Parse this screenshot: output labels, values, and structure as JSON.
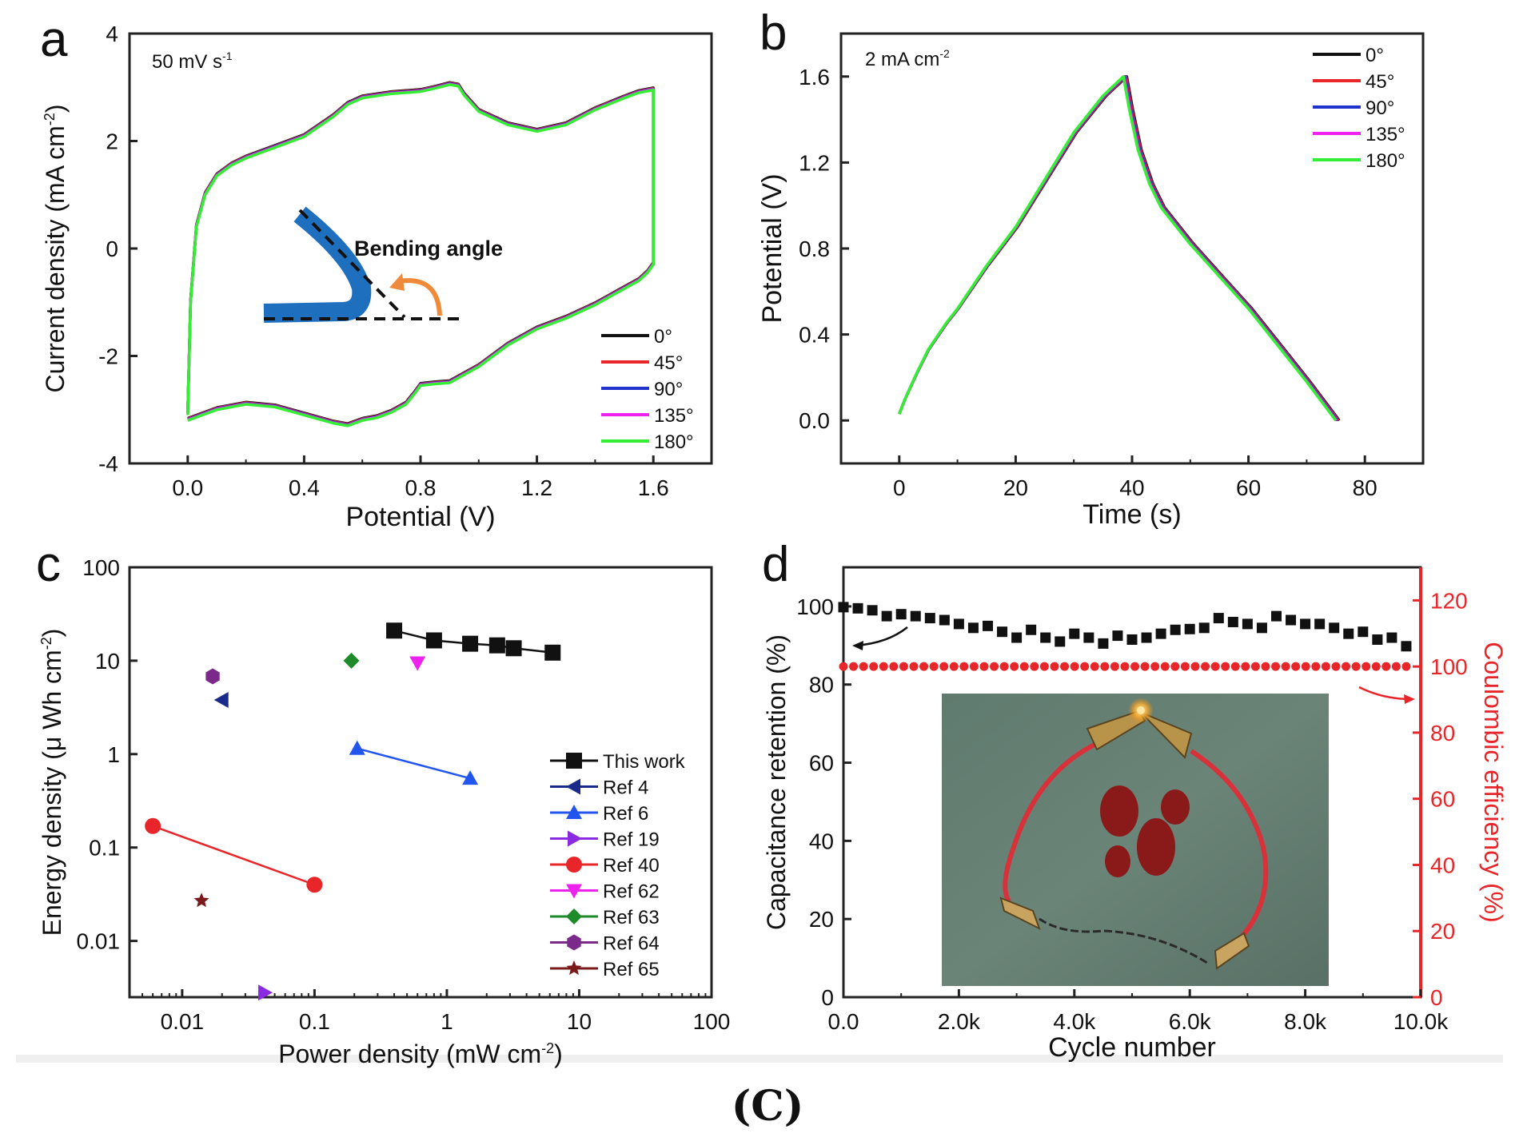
{
  "figure": {
    "caption": "(C)",
    "panel_labels": [
      "a",
      "b",
      "c",
      "d"
    ]
  },
  "chart_data": [
    {
      "id": "a",
      "type": "line",
      "annotation": "50 mV s",
      "annotation_sup": "-1",
      "xlabel": "Potential (V)",
      "ylabel": "Current density (mA cm",
      "ylabel_sup": "-2",
      "ylabel_end": ")",
      "xlim": [
        -0.2,
        1.8
      ],
      "ylim": [
        -4,
        4
      ],
      "xticks": [
        0.0,
        0.4,
        0.8,
        1.2,
        1.6
      ],
      "xtick_labels": [
        "0.0",
        "0.4",
        "0.8",
        "1.2",
        "1.6"
      ],
      "yticks": [
        -4,
        -2,
        0,
        2,
        4
      ],
      "ytick_labels": [
        "-4",
        "-2",
        "0",
        "2",
        "4"
      ],
      "inset_label": "Bending angle",
      "legend_position": "bottom-right",
      "upper_branch": {
        "x": [
          0.0,
          0.01,
          0.03,
          0.06,
          0.1,
          0.15,
          0.2,
          0.3,
          0.4,
          0.5,
          0.55,
          0.6,
          0.7,
          0.8,
          0.85,
          0.9,
          0.93,
          0.95,
          1.0,
          1.1,
          1.2,
          1.3,
          1.4,
          1.5,
          1.55,
          1.6,
          1.6
        ],
        "y": [
          -3.1,
          -1.0,
          0.4,
          1.0,
          1.35,
          1.55,
          1.68,
          1.88,
          2.08,
          2.45,
          2.68,
          2.8,
          2.88,
          2.92,
          2.98,
          3.05,
          3.02,
          2.85,
          2.55,
          2.3,
          2.18,
          2.3,
          2.58,
          2.8,
          2.9,
          2.95,
          -0.3
        ]
      },
      "lower_branch": {
        "x": [
          1.6,
          1.58,
          1.55,
          1.5,
          1.4,
          1.3,
          1.2,
          1.1,
          1.0,
          0.9,
          0.85,
          0.8,
          0.78,
          0.75,
          0.7,
          0.65,
          0.6,
          0.55,
          0.5,
          0.4,
          0.3,
          0.2,
          0.1,
          0.0
        ],
        "y": [
          -0.3,
          -0.45,
          -0.6,
          -0.75,
          -1.05,
          -1.3,
          -1.5,
          -1.8,
          -2.2,
          -2.5,
          -2.52,
          -2.55,
          -2.7,
          -2.9,
          -3.05,
          -3.15,
          -3.2,
          -3.3,
          -3.25,
          -3.1,
          -2.95,
          -2.9,
          -3.0,
          -3.2
        ]
      },
      "series": [
        {
          "name": "0°",
          "color": "#111111",
          "dy": 0.04
        },
        {
          "name": "45°",
          "color": "#e8262a",
          "dy": 0.03
        },
        {
          "name": "90°",
          "color": "#2233cc",
          "dy": 0.02
        },
        {
          "name": "135°",
          "color": "#ee22ee",
          "dy": 0.01
        },
        {
          "name": "180°",
          "color": "#33ee33",
          "dy": 0.0
        }
      ]
    },
    {
      "id": "b",
      "type": "line",
      "annotation": "2 mA cm",
      "annotation_sup": "-2",
      "xlabel": "Time (s)",
      "ylabel": "Potential (V)",
      "xlim": [
        -10,
        90
      ],
      "ylim": [
        -0.2,
        1.8
      ],
      "xticks": [
        0,
        20,
        40,
        60,
        80
      ],
      "xtick_labels": [
        "0",
        "20",
        "40",
        "60",
        "80"
      ],
      "yticks": [
        0.0,
        0.4,
        0.8,
        1.2,
        1.6
      ],
      "ytick_labels": [
        "0.0",
        "0.4",
        "0.8",
        "1.2",
        "1.6"
      ],
      "legend_position": "top-right",
      "curve": {
        "x": [
          0,
          1,
          3,
          5,
          8,
          10,
          15,
          20,
          25,
          30,
          35,
          38.5,
          39.5,
          41,
          43,
          45,
          50,
          55,
          60,
          65,
          70,
          75
        ],
        "y": [
          0.03,
          0.1,
          0.22,
          0.33,
          0.45,
          0.52,
          0.72,
          0.9,
          1.12,
          1.34,
          1.51,
          1.6,
          1.45,
          1.26,
          1.1,
          0.99,
          0.82,
          0.67,
          0.52,
          0.35,
          0.18,
          0.0
        ]
      },
      "series": [
        {
          "name": "0°",
          "color": "#111111",
          "dx": 0.6
        },
        {
          "name": "45°",
          "color": "#e8262a",
          "dx": 0.45
        },
        {
          "name": "90°",
          "color": "#2233cc",
          "dx": 0.3
        },
        {
          "name": "135°",
          "color": "#ee22ee",
          "dx": 0.15
        },
        {
          "name": "180°",
          "color": "#33ee33",
          "dx": 0.0
        }
      ]
    },
    {
      "id": "c",
      "type": "scatter",
      "xscale": "log",
      "yscale": "log",
      "xlabel": "Power density (mW cm",
      "xlabel_sup": "-2",
      "xlabel_end": ")",
      "ylabel": "Energy density (μ Wh cm",
      "ylabel_sup": "-2",
      "ylabel_end": ")",
      "xlim": [
        0.004,
        100
      ],
      "ylim": [
        0.0025,
        100
      ],
      "xticks": [
        0.01,
        0.1,
        1,
        10,
        100
      ],
      "xtick_labels": [
        "0.01",
        "0.1",
        "1",
        "10",
        "100"
      ],
      "yticks": [
        0.01,
        0.1,
        1,
        10,
        100
      ],
      "ytick_labels": [
        "0.01",
        "0.1",
        "1",
        "10",
        "100"
      ],
      "legend_position": "bottom-right",
      "series": [
        {
          "name": "This work",
          "marker": "square",
          "color": "#111111",
          "line": true,
          "x": [
            0.4,
            0.8,
            1.5,
            2.4,
            3.2,
            6.3
          ],
          "y": [
            21,
            16.5,
            15.2,
            14.6,
            13.6,
            12.2
          ]
        },
        {
          "name": "Ref 4",
          "marker": "triangle-left",
          "color": "#1a2a8a",
          "line": false,
          "x": [
            0.02
          ],
          "y": [
            3.8
          ]
        },
        {
          "name": "Ref 6",
          "marker": "triangle-up",
          "color": "#2255ee",
          "line": true,
          "x": [
            0.21,
            1.5
          ],
          "y": [
            1.15,
            0.55
          ]
        },
        {
          "name": "Ref 19",
          "marker": "triangle-right",
          "color": "#8a2be2",
          "line": false,
          "x": [
            0.042
          ],
          "y": [
            0.0028
          ]
        },
        {
          "name": "Ref 40",
          "marker": "circle",
          "color": "#e8262a",
          "line": true,
          "x": [
            0.006,
            0.1
          ],
          "y": [
            0.17,
            0.04
          ]
        },
        {
          "name": "Ref 62",
          "marker": "triangle-down",
          "color": "#ee22ee",
          "line": false,
          "x": [
            0.6
          ],
          "y": [
            9.5
          ]
        },
        {
          "name": "Ref 63",
          "marker": "diamond",
          "color": "#1e8a2a",
          "line": false,
          "x": [
            0.19
          ],
          "y": [
            10
          ]
        },
        {
          "name": "Ref 64",
          "marker": "hexagon",
          "color": "#7b2a8a",
          "line": false,
          "x": [
            0.017
          ],
          "y": [
            6.8
          ]
        },
        {
          "name": "Ref 65",
          "marker": "star",
          "color": "#7a1a1a",
          "line": false,
          "x": [
            0.014
          ],
          "y": [
            0.027
          ]
        }
      ]
    },
    {
      "id": "d",
      "type": "scatter",
      "xlabel": "Cycle number",
      "ylabel": "Capacitance retention (%)",
      "ylabel_right": "Coulombic efficiency (%)",
      "xlim": [
        0,
        10000
      ],
      "ylim": [
        0,
        110
      ],
      "ylim_right": [
        0,
        130
      ],
      "xticks": [
        0,
        2000,
        4000,
        6000,
        8000,
        10000
      ],
      "xtick_labels": [
        "0.0",
        "2.0k",
        "4.0k",
        "6.0k",
        "8.0k",
        "10.0k"
      ],
      "yticks": [
        0,
        20,
        40,
        60,
        80,
        100
      ],
      "ytick_labels": [
        "0",
        "20",
        "40",
        "60",
        "80",
        "100"
      ],
      "yticks_right": [
        0,
        20,
        40,
        60,
        80,
        100,
        120
      ],
      "ytick_labels_right": [
        "0",
        "20",
        "40",
        "60",
        "80",
        "100",
        "120"
      ],
      "inset": "photo of a device lighting an LED between two alligator clips",
      "series": [
        {
          "name": "Capacitance retention",
          "axis": "left",
          "marker": "square",
          "color": "#111111",
          "x": [
            0,
            250,
            500,
            750,
            1000,
            1250,
            1500,
            1750,
            2000,
            2250,
            2500,
            2750,
            3000,
            3250,
            3500,
            3750,
            4000,
            4250,
            4500,
            4750,
            5000,
            5250,
            5500,
            5750,
            6000,
            6250,
            6500,
            6750,
            7000,
            7250,
            7500,
            7750,
            8000,
            8250,
            8500,
            8750,
            9000,
            9250,
            9500,
            9750
          ],
          "y": [
            99.8,
            99.5,
            99,
            97.5,
            98,
            97.5,
            97,
            96.5,
            95.5,
            94.5,
            95,
            93.5,
            92,
            94,
            92,
            91,
            93,
            92,
            90.5,
            92.5,
            91.5,
            92,
            93,
            94,
            94.2,
            94.5,
            97,
            96,
            95.5,
            94.5,
            97.5,
            96.5,
            95.5,
            95.5,
            94.5,
            93,
            93.5,
            91.5,
            92,
            89.8
          ]
        },
        {
          "name": "Coulombic efficiency",
          "axis": "right",
          "marker": "circle",
          "color": "#e8262a",
          "x_start": 0,
          "x_end": 9750,
          "count": 57,
          "y": 100
        }
      ]
    }
  ]
}
